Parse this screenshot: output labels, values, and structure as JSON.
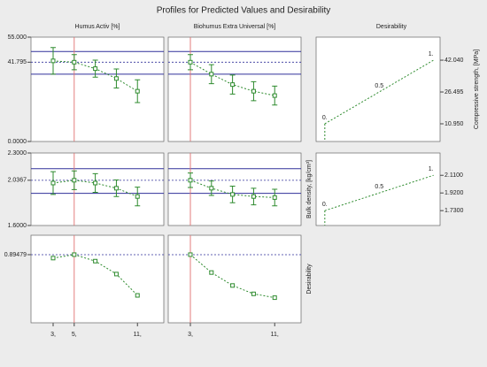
{
  "chart_data": {
    "type": "profiler",
    "title": "Profiles for Predicted Values and Desirability",
    "desirability_header": "Desirability",
    "factors": [
      {
        "name": "Humus Activ [%]",
        "x": [
          3,
          5,
          7,
          9,
          11
        ],
        "current": 5,
        "xlim": [
          0.9,
          13.5
        ],
        "xticks": [
          {
            "value": 3,
            "label": "3,"
          },
          {
            "value": 5,
            "label": "5,"
          },
          {
            "value": 11,
            "label": "11,"
          }
        ]
      },
      {
        "name": "Biohumus Extra Universal [%]",
        "x": [
          3,
          5,
          7,
          9,
          11
        ],
        "current": 3,
        "xlim": [
          0.9,
          13.5
        ],
        "xticks": [
          {
            "value": 3,
            "label": "3,"
          },
          {
            "value": 11,
            "label": "11,"
          }
        ]
      }
    ],
    "responses": [
      {
        "ylim": [
          0,
          55
        ],
        "yticks": [
          {
            "value": 0,
            "label": "0.0000"
          },
          41.795,
          {
            "value": 55,
            "label": "55.000"
          }
        ],
        "current": 41.795,
        "ci": [
          35.5,
          47.4
        ],
        "series": [
          {
            "values": [
              42.5,
              41.8,
              38.4,
              33.2,
              26.5
            ],
            "errors": [
              7,
              4,
              4.5,
              5,
              6
            ]
          },
          {
            "values": [
              41.8,
              35.5,
              30,
              26.5,
              24.2
            ],
            "errors": [
              4,
              5,
              5,
              5,
              5
            ]
          }
        ],
        "desirability": {
          "name": "Compressive strength, [MPa]",
          "ylim": [
            2.3,
            53.3
          ],
          "xlim": [
            -0.08,
            1.06
          ],
          "yticks": [
            {
              "value": 10.95,
              "label": "10.950"
            },
            {
              "value": 26.495,
              "label": "26.495"
            },
            {
              "value": 42.04,
              "label": "42.040"
            }
          ],
          "levels": [
            {
              "value": 0,
              "label": "0."
            },
            {
              "value": 0.5,
              "label": "0.5"
            },
            {
              "value": 1,
              "label": "1."
            }
          ],
          "values": [
            10.95,
            26.495,
            42.04
          ]
        }
      },
      {
        "ylim": [
          1.6,
          2.3
        ],
        "yticks": [
          {
            "value": 1.6,
            "label": "1.6000"
          },
          {
            "value": 2.0367,
            "label": "2.0367"
          },
          {
            "value": 2.3,
            "label": "2.3000"
          }
        ],
        "current": 2.0367,
        "ci": [
          1.91,
          2.149
        ],
        "series": [
          {
            "values": [
              2.01,
              2.037,
              2.01,
              1.96,
              1.88
            ],
            "errors": [
              0.11,
              0.09,
              0.09,
              0.08,
              0.09
            ]
          },
          {
            "values": [
              2.037,
              1.96,
              1.9,
              1.88,
              1.87
            ],
            "errors": [
              0.07,
              0.07,
              0.08,
              0.08,
              0.08
            ]
          }
        ],
        "desirability": {
          "name": "Bulk density, [kg/cm³]",
          "ylim": [
            1.57,
            2.35
          ],
          "xlim": [
            -0.08,
            1.06
          ],
          "yticks": [
            {
              "value": 1.73,
              "label": "1.7300"
            },
            {
              "value": 1.92,
              "label": "1.9200"
            },
            {
              "value": 2.11,
              "label": "2.1100"
            }
          ],
          "levels": [
            {
              "value": 0,
              "label": "0."
            },
            {
              "value": 0.5,
              "label": "0.5"
            },
            {
              "value": 1,
              "label": "1."
            }
          ],
          "values": [
            1.73,
            1.92,
            2.11
          ]
        }
      },
      {
        "name": "Desirability",
        "ylim": [
          0,
          1.15
        ],
        "yticks": [
          0.89479
        ],
        "current": 0.89479,
        "series": [
          {
            "values": [
              0.85,
              0.895,
              0.81,
              0.64,
              0.36
            ]
          },
          {
            "values": [
              0.895,
              0.66,
              0.49,
              0.38,
              0.33
            ]
          }
        ]
      }
    ]
  }
}
